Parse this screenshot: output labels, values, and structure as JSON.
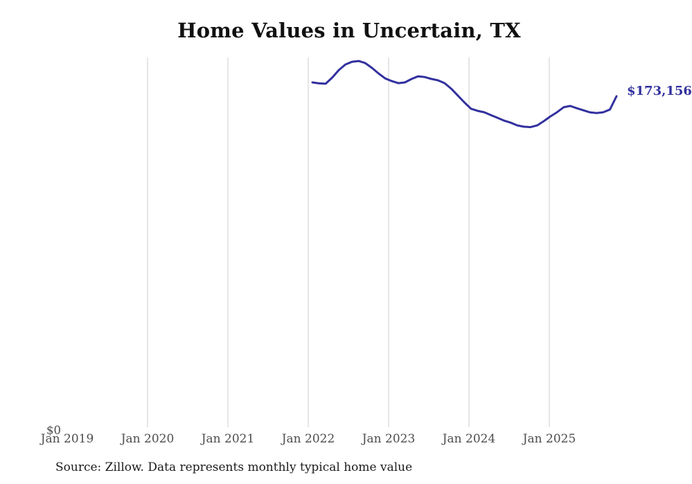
{
  "header": {
    "title": "Home Values in Uncertain, TX"
  },
  "footer": {
    "source_note": "Source: Zillow. Data represents monthly typical home value"
  },
  "colors": {
    "background": "#ffffff",
    "line": "#32309e",
    "end_label_text": "#32309e",
    "gridline": "#cccccc",
    "tick_text": "#4d4d4d",
    "title_text": "#111111",
    "source_text": "#1a1a1a"
  },
  "chart_data": {
    "type": "line",
    "title": "Home Values in Uncertain, TX",
    "x_tick_labels": [
      "Jan 2019",
      "Jan 2020",
      "Jan 2021",
      "Jan 2022",
      "Jan 2023",
      "Jan 2024",
      "Jan 2025"
    ],
    "y_axis": {
      "zero_label": "$0",
      "min": 0
    },
    "end_label": "$173,156",
    "latest_value": 173156,
    "grid": "vertical year gridlines only (Jan 2020 through Jan 2025), no horizontal gridlines",
    "legend": "none",
    "series": [
      {
        "name": "Monthly typical home value",
        "color": "#32309e",
        "months": [
          "Jan 2022",
          "Feb 2022",
          "Mar 2022",
          "Apr 2022",
          "May 2022",
          "Jun 2022",
          "Jul 2022",
          "Aug 2022",
          "Sep 2022",
          "Oct 2022",
          "Nov 2022",
          "Dec 2022",
          "Jan 2023",
          "Feb 2023",
          "Mar 2023",
          "Apr 2023",
          "May 2023",
          "Jun 2023",
          "Jul 2023",
          "Aug 2023",
          "Sep 2023",
          "Oct 2023",
          "Nov 2023",
          "Dec 2023",
          "Jan 2024",
          "Feb 2024",
          "Mar 2024",
          "Apr 2024",
          "May 2024",
          "Jun 2024",
          "Jul 2024",
          "Aug 2024",
          "Sep 2024",
          "Oct 2024",
          "Nov 2024",
          "Dec 2024",
          "Jan 2025",
          "Feb 2025",
          "Mar 2025",
          "Apr 2025",
          "May 2025",
          "Jun 2025",
          "Jul 2025",
          "Aug 2025",
          "Sep 2025",
          "Oct 2025",
          "Nov 2025"
        ],
        "values": [
          180400,
          179900,
          179700,
          182900,
          186900,
          189800,
          191200,
          191600,
          190500,
          188000,
          185100,
          182500,
          181100,
          180000,
          180400,
          182200,
          183600,
          183200,
          182200,
          181500,
          180000,
          177100,
          173500,
          169900,
          166600,
          165500,
          164800,
          163300,
          161900,
          160400,
          159300,
          157900,
          157200,
          157000,
          157900,
          160100,
          162600,
          164800,
          167400,
          168100,
          166900,
          165800,
          164700,
          164400,
          164800,
          166200,
          173156
        ]
      }
    ]
  }
}
